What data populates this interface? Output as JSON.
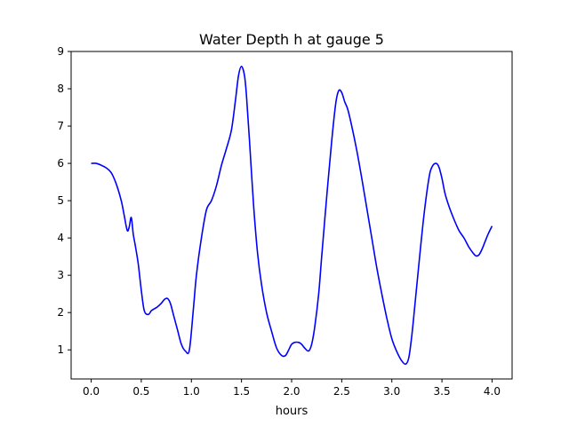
{
  "chart_data": {
    "type": "line",
    "title": "Water Depth h at gauge 5",
    "xlabel": "hours",
    "ylabel": "",
    "xlim": [
      -0.2,
      4.2
    ],
    "ylim": [
      0.22,
      9.0
    ],
    "xticks": [
      "0.0",
      "0.5",
      "1.0",
      "1.5",
      "2.0",
      "2.5",
      "3.0",
      "3.5",
      "4.0"
    ],
    "yticks": [
      "1",
      "2",
      "3",
      "4",
      "5",
      "6",
      "7",
      "8",
      "9"
    ],
    "grid": false,
    "series": [
      {
        "color": "#0000ff",
        "x": [
          0.0,
          0.05,
          0.1,
          0.15,
          0.2,
          0.25,
          0.3,
          0.33,
          0.36,
          0.38,
          0.4,
          0.42,
          0.44,
          0.47,
          0.5,
          0.53,
          0.57,
          0.6,
          0.63,
          0.66,
          0.7,
          0.73,
          0.76,
          0.79,
          0.82,
          0.86,
          0.9,
          0.94,
          0.98,
          1.02,
          1.05,
          1.1,
          1.15,
          1.2,
          1.25,
          1.3,
          1.35,
          1.4,
          1.44,
          1.47,
          1.5,
          1.53,
          1.55,
          1.58,
          1.62,
          1.66,
          1.7,
          1.75,
          1.8,
          1.85,
          1.9,
          1.94,
          1.98,
          2.0,
          2.03,
          2.07,
          2.1,
          2.13,
          2.17,
          2.2,
          2.23,
          2.27,
          2.3,
          2.35,
          2.4,
          2.44,
          2.47,
          2.5,
          2.53,
          2.56,
          2.6,
          2.65,
          2.7,
          2.75,
          2.8,
          2.85,
          2.9,
          2.95,
          3.0,
          3.05,
          3.1,
          3.14,
          3.17,
          3.2,
          3.23,
          3.27,
          3.32,
          3.37,
          3.4,
          3.44,
          3.47,
          3.5,
          3.53,
          3.57,
          3.62,
          3.67,
          3.72,
          3.77,
          3.81,
          3.84,
          3.87,
          3.9,
          3.93,
          3.96,
          4.0
        ],
        "values": [
          6.0,
          6.0,
          5.95,
          5.88,
          5.75,
          5.45,
          5.0,
          4.6,
          4.2,
          4.3,
          4.55,
          4.1,
          3.8,
          3.3,
          2.6,
          2.05,
          1.95,
          2.05,
          2.1,
          2.15,
          2.25,
          2.35,
          2.38,
          2.25,
          1.95,
          1.55,
          1.15,
          0.97,
          1.0,
          2.1,
          3.0,
          4.0,
          4.75,
          5.0,
          5.4,
          5.95,
          6.4,
          6.9,
          7.7,
          8.35,
          8.6,
          8.35,
          7.8,
          6.6,
          4.9,
          3.6,
          2.75,
          2.0,
          1.5,
          1.05,
          0.85,
          0.85,
          1.05,
          1.15,
          1.2,
          1.2,
          1.15,
          1.05,
          0.97,
          1.15,
          1.6,
          2.5,
          3.5,
          5.1,
          6.6,
          7.6,
          7.95,
          7.9,
          7.65,
          7.45,
          7.0,
          6.35,
          5.6,
          4.8,
          4.0,
          3.2,
          2.5,
          1.85,
          1.3,
          0.95,
          0.7,
          0.62,
          0.8,
          1.4,
          2.2,
          3.3,
          4.6,
          5.6,
          5.9,
          6.0,
          5.9,
          5.6,
          5.2,
          4.85,
          4.5,
          4.2,
          4.0,
          3.75,
          3.6,
          3.52,
          3.55,
          3.7,
          3.9,
          4.1,
          4.32
        ]
      }
    ]
  }
}
